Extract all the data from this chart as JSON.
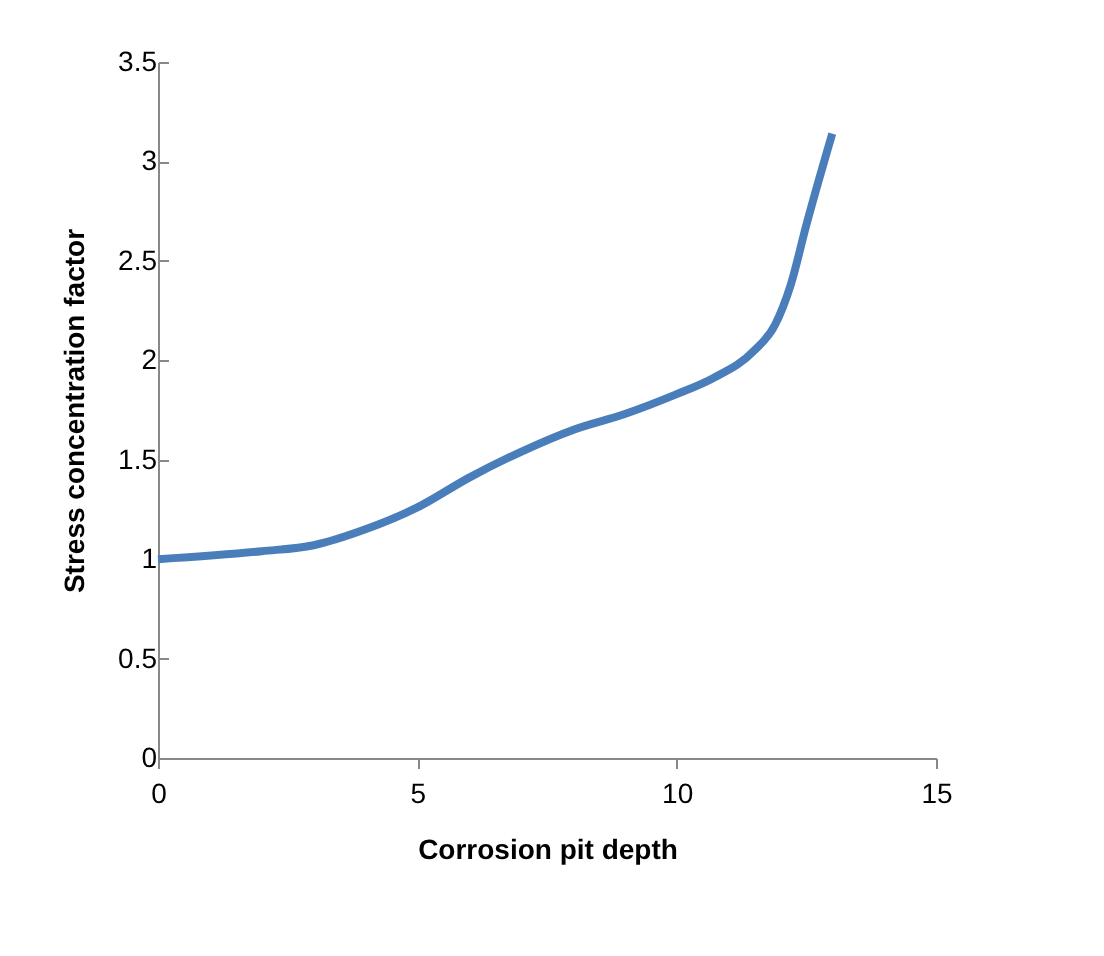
{
  "chart_data": {
    "type": "line",
    "xlabel": "Corrosion pit depth",
    "ylabel": "Stress concentration factor",
    "x": [
      0,
      2,
      3,
      4,
      5,
      6,
      7,
      8,
      9,
      10,
      10.7,
      11.5,
      11.9,
      12.2,
      12.5,
      13
    ],
    "series": [
      {
        "color": "#4a7ebb",
        "values": [
          1.0,
          1.04,
          1.07,
          1.15,
          1.26,
          1.41,
          1.54,
          1.65,
          1.73,
          1.83,
          1.91,
          2.05,
          2.18,
          2.38,
          2.68,
          3.14
        ]
      }
    ],
    "xlim": [
      0,
      15
    ],
    "xticks": [
      0,
      5,
      10,
      15
    ],
    "ylim": [
      0,
      3.5
    ],
    "yticks": [
      0,
      0.5,
      1,
      1.5,
      2,
      2.5,
      3,
      3.5
    ],
    "grid": false,
    "legend": false,
    "marker": "none",
    "line_style": "solid"
  }
}
